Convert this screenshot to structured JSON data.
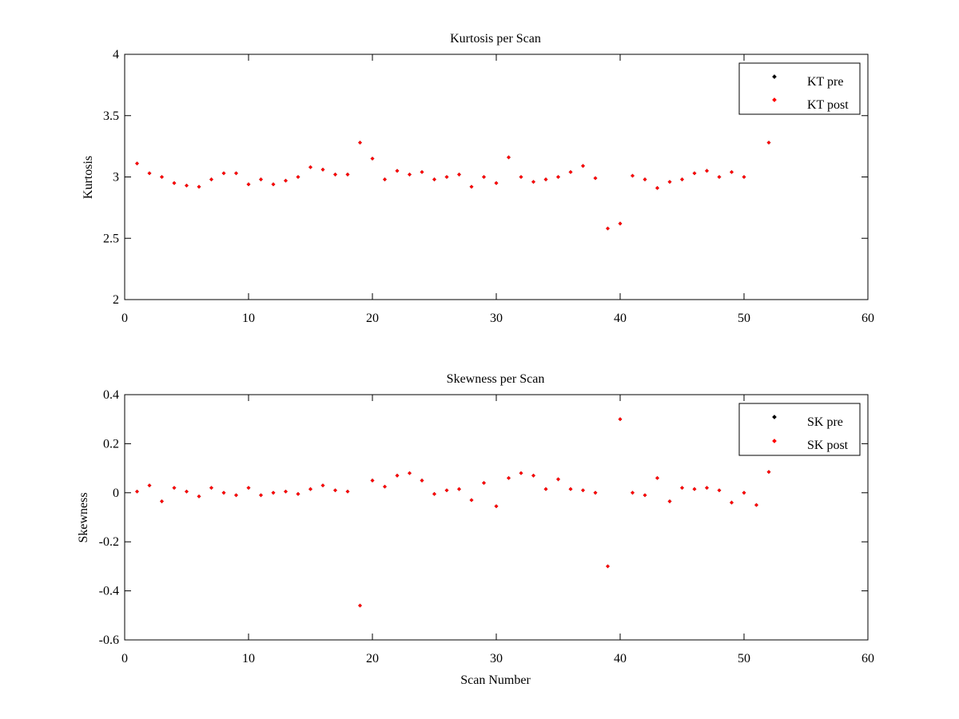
{
  "colors": {
    "pre": "#000000",
    "post": "#ff0000",
    "axes": "#000000",
    "background": "#ffffff"
  },
  "chart_data": [
    {
      "type": "scatter",
      "title": "Kurtosis per Scan",
      "xlabel": "",
      "ylabel": "Kurtosis",
      "xlim": [
        0,
        60
      ],
      "ylim": [
        2,
        4
      ],
      "xticks": [
        "0",
        "10",
        "20",
        "30",
        "40",
        "50",
        "60"
      ],
      "yticks": [
        "2",
        "2.5",
        "3",
        "3.5",
        "4"
      ],
      "grid": false,
      "legend_position": "top-right",
      "series": [
        {
          "name": "KT pre",
          "color": "#000000",
          "x": [
            1,
            2,
            3,
            4,
            5,
            6,
            7,
            8,
            9,
            10,
            11,
            12,
            13,
            14,
            15,
            16,
            17,
            18,
            19,
            20,
            21,
            22,
            23,
            24,
            25,
            26,
            27,
            28,
            29,
            30,
            31,
            32,
            33,
            34,
            35,
            36,
            37,
            38,
            39,
            40,
            41,
            42,
            43,
            44,
            45,
            46,
            47,
            48,
            49,
            50,
            52
          ],
          "y": [
            3.11,
            3.03,
            3.0,
            2.95,
            2.93,
            2.92,
            2.98,
            3.03,
            3.03,
            2.94,
            2.98,
            2.94,
            2.97,
            3.0,
            3.08,
            3.06,
            3.02,
            3.02,
            3.28,
            3.15,
            2.98,
            3.05,
            3.02,
            3.04,
            2.98,
            3.0,
            3.02,
            2.92,
            3.0,
            2.95,
            3.16,
            3.0,
            2.96,
            2.98,
            3.0,
            3.04,
            3.09,
            2.99,
            2.58,
            2.62,
            3.01,
            2.98,
            2.91,
            2.96,
            2.98,
            3.03,
            3.05,
            3.0,
            3.04,
            3.0,
            3.28
          ]
        },
        {
          "name": "KT post",
          "color": "#ff0000",
          "x": [
            1,
            2,
            3,
            4,
            5,
            6,
            7,
            8,
            9,
            10,
            11,
            12,
            13,
            14,
            15,
            16,
            17,
            18,
            19,
            20,
            21,
            22,
            23,
            24,
            25,
            26,
            27,
            28,
            29,
            30,
            31,
            32,
            33,
            34,
            35,
            36,
            37,
            38,
            39,
            40,
            41,
            42,
            43,
            44,
            45,
            46,
            47,
            48,
            49,
            50,
            52
          ],
          "y": [
            3.11,
            3.03,
            3.0,
            2.95,
            2.93,
            2.92,
            2.98,
            3.03,
            3.03,
            2.94,
            2.98,
            2.94,
            2.97,
            3.0,
            3.08,
            3.06,
            3.02,
            3.02,
            3.28,
            3.15,
            2.98,
            3.05,
            3.02,
            3.04,
            2.98,
            3.0,
            3.02,
            2.92,
            3.0,
            2.95,
            3.16,
            3.0,
            2.96,
            2.98,
            3.0,
            3.04,
            3.09,
            2.99,
            2.58,
            2.62,
            3.01,
            2.98,
            2.91,
            2.96,
            2.98,
            3.03,
            3.05,
            3.0,
            3.04,
            3.0,
            3.28
          ]
        }
      ]
    },
    {
      "type": "scatter",
      "title": "Skewness per Scan",
      "xlabel": "Scan Number",
      "ylabel": "Skewness",
      "xlim": [
        0,
        60
      ],
      "ylim": [
        -0.6,
        0.4
      ],
      "xticks": [
        "0",
        "10",
        "20",
        "30",
        "40",
        "50",
        "60"
      ],
      "yticks": [
        "-0.6",
        "-0.4",
        "-0.2",
        "0",
        "0.2",
        "0.4"
      ],
      "grid": false,
      "legend_position": "top-right",
      "series": [
        {
          "name": "SK pre",
          "color": "#000000",
          "x": [
            1,
            2,
            3,
            4,
            5,
            6,
            7,
            8,
            9,
            10,
            11,
            12,
            13,
            14,
            15,
            16,
            17,
            18,
            19,
            20,
            21,
            22,
            23,
            24,
            25,
            26,
            27,
            28,
            29,
            30,
            31,
            32,
            33,
            34,
            35,
            36,
            37,
            38,
            39,
            40,
            41,
            42,
            43,
            44,
            45,
            46,
            47,
            48,
            49,
            50,
            51,
            52
          ],
          "y": [
            0.005,
            0.03,
            -0.035,
            0.02,
            0.005,
            -0.015,
            0.02,
            0.0,
            -0.01,
            0.02,
            -0.01,
            0.0,
            0.005,
            -0.005,
            0.015,
            0.03,
            0.01,
            0.005,
            -0.46,
            0.05,
            0.025,
            0.07,
            0.08,
            0.05,
            -0.005,
            0.01,
            0.015,
            -0.03,
            0.04,
            -0.055,
            0.06,
            0.08,
            0.07,
            0.015,
            0.055,
            0.015,
            0.01,
            0.0,
            -0.3,
            0.3,
            0.0,
            -0.01,
            0.06,
            -0.035,
            0.02,
            0.015,
            0.02,
            0.01,
            -0.04,
            0.0,
            -0.05,
            0.085
          ]
        },
        {
          "name": "SK post",
          "color": "#ff0000",
          "x": [
            1,
            2,
            3,
            4,
            5,
            6,
            7,
            8,
            9,
            10,
            11,
            12,
            13,
            14,
            15,
            16,
            17,
            18,
            19,
            20,
            21,
            22,
            23,
            24,
            25,
            26,
            27,
            28,
            29,
            30,
            31,
            32,
            33,
            34,
            35,
            36,
            37,
            38,
            39,
            40,
            41,
            42,
            43,
            44,
            45,
            46,
            47,
            48,
            49,
            50,
            51,
            52
          ],
          "y": [
            0.005,
            0.03,
            -0.035,
            0.02,
            0.005,
            -0.015,
            0.02,
            0.0,
            -0.01,
            0.02,
            -0.01,
            0.0,
            0.005,
            -0.005,
            0.015,
            0.03,
            0.01,
            0.005,
            -0.46,
            0.05,
            0.025,
            0.07,
            0.08,
            0.05,
            -0.005,
            0.01,
            0.015,
            -0.03,
            0.04,
            -0.055,
            0.06,
            0.08,
            0.07,
            0.015,
            0.055,
            0.015,
            0.01,
            0.0,
            -0.3,
            0.3,
            0.0,
            -0.01,
            0.06,
            -0.035,
            0.02,
            0.015,
            0.02,
            0.01,
            -0.04,
            0.0,
            -0.05,
            0.085
          ]
        }
      ]
    }
  ]
}
